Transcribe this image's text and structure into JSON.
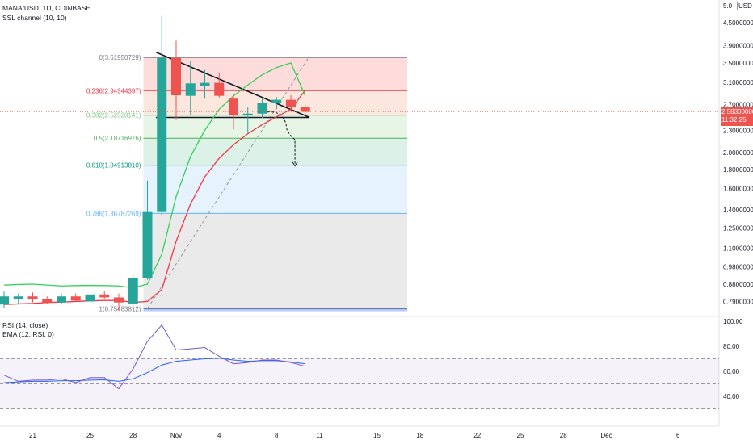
{
  "header": {
    "symbol_line": "MANA/USD, 1D, COINBASE",
    "indicator_line": "SSL channel (10, 10)"
  },
  "rsi_panel": {
    "line1": "RSI (14, close)",
    "line2": "EMA (12, RSI, 0)"
  },
  "price_badge": {
    "price": "2.58300000",
    "countdown": "11:32:25",
    "color": "#ef5350"
  },
  "currency_tag": "USD",
  "chart_data": {
    "type": "candlestick",
    "title": "MANA/USD, 1D, COINBASE",
    "ylim": [
      0.75,
      5.0
    ],
    "y_scale": "log",
    "y_ticks": [
      "5.0",
      "4.50000000",
      "3.90000000",
      "3.50000000",
      "3.10000000",
      "2.70000000",
      "2.30000000",
      "2.00000000",
      "1.80000000",
      "1.60000000",
      "1.40000000",
      "1.25000000",
      "1.10000000",
      "0.98000000",
      "0.88000000",
      "0.79000000"
    ],
    "x_ticks": [
      "21",
      "25",
      "28",
      "Nov",
      "4",
      "8",
      "11",
      "15",
      "18",
      "22",
      "25",
      "28",
      "Dec",
      "6"
    ],
    "colors": {
      "up": "#26a69a",
      "down": "#ef5350",
      "ssl_up": "#4caf50",
      "ssl_down": "#f23645"
    },
    "candles": [
      {
        "day": "Oct 19",
        "o": 0.775,
        "h": 0.84,
        "l": 0.76,
        "c": 0.815
      },
      {
        "day": "Oct 20",
        "o": 0.8,
        "h": 0.83,
        "l": 0.775,
        "c": 0.815
      },
      {
        "day": "Oct 21",
        "o": 0.815,
        "h": 0.835,
        "l": 0.785,
        "c": 0.8
      },
      {
        "day": "Oct 22",
        "o": 0.8,
        "h": 0.815,
        "l": 0.78,
        "c": 0.785
      },
      {
        "day": "Oct 23",
        "o": 0.785,
        "h": 0.83,
        "l": 0.775,
        "c": 0.815
      },
      {
        "day": "Oct 24",
        "o": 0.815,
        "h": 0.83,
        "l": 0.79,
        "c": 0.795
      },
      {
        "day": "Oct 25",
        "o": 0.79,
        "h": 0.84,
        "l": 0.78,
        "c": 0.825
      },
      {
        "day": "Oct 26",
        "o": 0.825,
        "h": 0.845,
        "l": 0.8,
        "c": 0.81
      },
      {
        "day": "Oct 27",
        "o": 0.81,
        "h": 0.83,
        "l": 0.745,
        "c": 0.785
      },
      {
        "day": "Oct 28",
        "o": 0.78,
        "h": 0.93,
        "l": 0.77,
        "c": 0.915
      },
      {
        "day": "Oct 29",
        "o": 0.915,
        "h": 1.68,
        "l": 0.905,
        "c": 1.38
      },
      {
        "day": "Oct 30",
        "o": 1.38,
        "h": 4.7,
        "l": 1.35,
        "c": 3.61
      },
      {
        "day": "Oct 31",
        "o": 3.61,
        "h": 4.02,
        "l": 2.45,
        "c": 2.86
      },
      {
        "day": "Nov 1",
        "o": 2.85,
        "h": 3.55,
        "l": 2.53,
        "c": 3.08
      },
      {
        "day": "Nov 2",
        "o": 3.03,
        "h": 3.35,
        "l": 2.8,
        "c": 3.09
      },
      {
        "day": "Nov 3",
        "o": 3.09,
        "h": 3.3,
        "l": 2.82,
        "c": 2.85
      },
      {
        "day": "Nov 4",
        "o": 2.8,
        "h": 2.87,
        "l": 2.31,
        "c": 2.52
      },
      {
        "day": "Nov 5",
        "o": 2.52,
        "h": 2.65,
        "l": 2.26,
        "c": 2.55
      },
      {
        "day": "Nov 6",
        "o": 2.55,
        "h": 2.82,
        "l": 2.48,
        "c": 2.72
      },
      {
        "day": "Nov 7",
        "o": 2.72,
        "h": 2.83,
        "l": 2.62,
        "c": 2.78
      },
      {
        "day": "Nov 8",
        "o": 2.78,
        "h": 2.86,
        "l": 2.62,
        "c": 2.66
      },
      {
        "day": "Nov 9",
        "o": 2.66,
        "h": 2.7,
        "l": 2.5,
        "c": 2.58
      }
    ],
    "ssl_up": [
      0.875,
      0.878,
      0.88,
      0.875,
      0.87,
      0.872,
      0.873,
      0.872,
      0.87,
      0.86,
      0.88,
      1.06,
      1.52,
      1.95,
      2.3,
      2.62,
      2.85,
      3.05,
      3.25,
      3.4,
      3.5,
      2.85
    ],
    "ssl_down": [
      0.775,
      0.778,
      0.78,
      0.785,
      0.787,
      0.79,
      0.793,
      0.795,
      0.795,
      0.785,
      0.79,
      0.85,
      1.15,
      1.45,
      1.72,
      1.93,
      2.1,
      2.25,
      2.38,
      2.5,
      2.62,
      2.95
    ],
    "fib_levels": [
      {
        "label": "0(3.61950729)",
        "value": 3.6195,
        "color": "#787b86"
      },
      {
        "label": "0.236(2.94344397)",
        "value": 2.9434,
        "color": "#f23645"
      },
      {
        "label": "0.382(2.52520141)",
        "value": 2.5252,
        "color": "#81c784"
      },
      {
        "label": "0.5(2.18716976)",
        "value": 2.1872,
        "color": "#4caf50"
      },
      {
        "label": "0.618(1.84913810)",
        "value": 1.8491,
        "color": "#089981"
      },
      {
        "label": "0.786(1.36787269)",
        "value": 1.3679,
        "color": "#64b5f6"
      },
      {
        "label": "1(0.75483812)",
        "value": 0.7548,
        "color": "#787b86"
      }
    ],
    "fib_zone_colors": [
      "#ffd6d6",
      "#fbe3d8",
      "#e3f3e3",
      "#d6efe3",
      "#e2f0fb",
      "#e6e6e6"
    ],
    "drawings": {
      "triangle_top": [
        [
          10.6,
          3.74
        ],
        [
          21.3,
          2.49
        ]
      ],
      "triangle_base": [
        [
          10.6,
          2.49
        ],
        [
          21.3,
          2.49
        ]
      ],
      "diagonal": [
        [
          10.0,
          0.755
        ],
        [
          21.3,
          3.65
        ]
      ]
    },
    "rsi": {
      "ylim": [
        20,
        100
      ],
      "ticks": [
        "100.00",
        "80.00",
        "60.00",
        "40.00"
      ],
      "band": [
        30,
        70
      ],
      "mid": 50,
      "rsi_values": [
        57,
        52,
        53,
        53,
        54,
        51,
        55,
        55,
        46,
        62,
        84,
        97,
        77,
        78,
        79,
        72,
        66,
        67,
        69,
        69,
        67,
        64
      ],
      "ema_values": [
        51,
        51.5,
        52,
        52,
        52.5,
        52.5,
        53,
        53.2,
        52,
        54,
        59,
        65,
        68,
        69,
        70,
        70.5,
        69,
        68,
        68.5,
        68.5,
        67.5,
        66
      ]
    }
  }
}
